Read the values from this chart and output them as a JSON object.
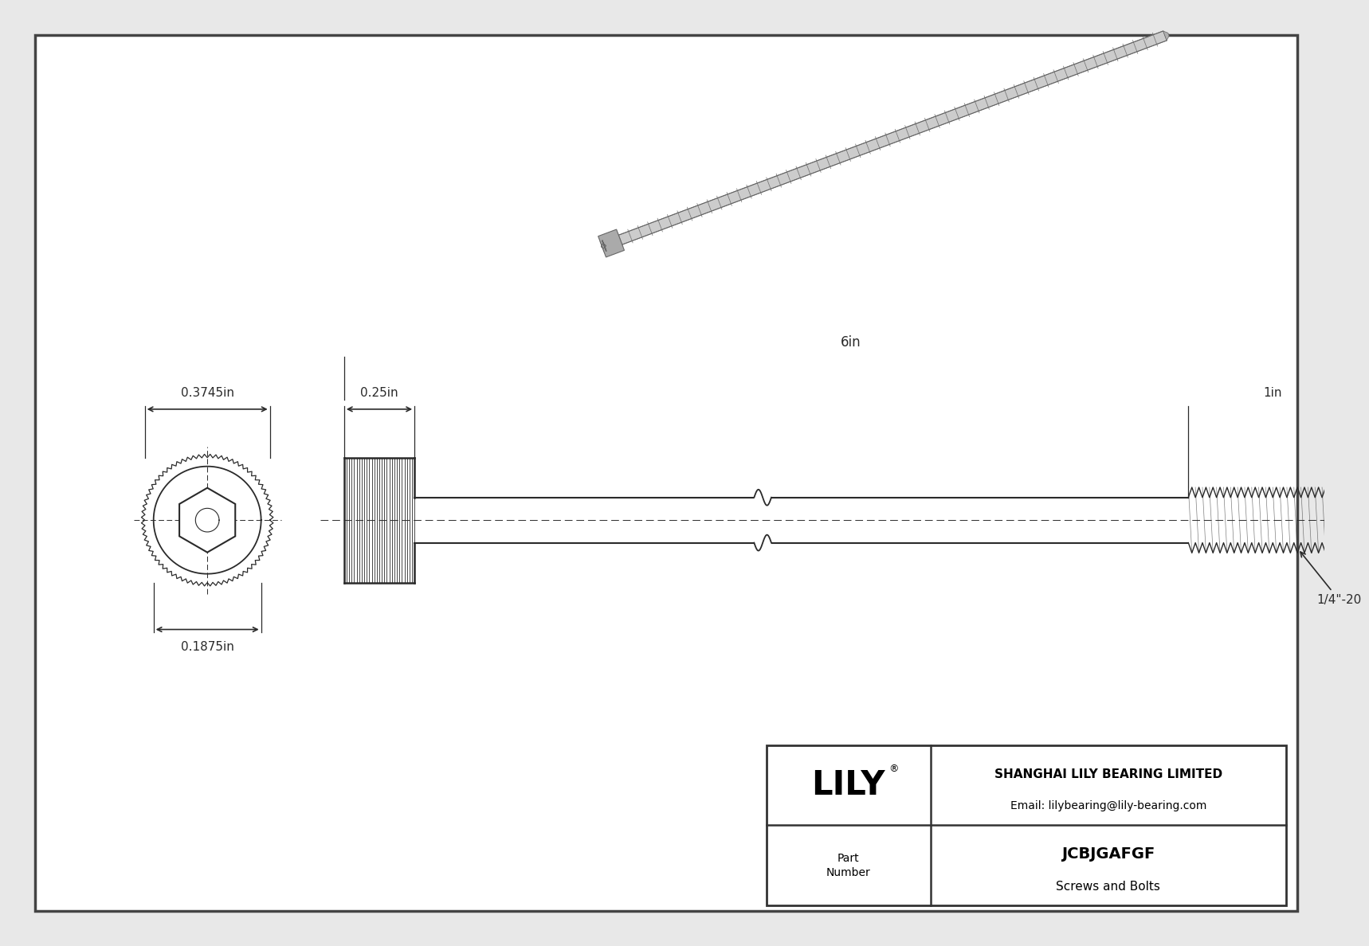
{
  "bg_color": "#e8e8e8",
  "drawing_bg": "#ffffff",
  "line_color": "#2a2a2a",
  "dim_color": "#2a2a2a",
  "title_company": "SHANGHAI LILY BEARING LIMITED",
  "title_email": "Email: lilybearing@lily-bearing.com",
  "part_number": "JCBJGAFGF",
  "part_type": "Screws and Bolts",
  "lily_text": "LILY",
  "dim_head_diameter": "0.3745in",
  "dim_shaft_diameter": "0.1875in",
  "dim_head_length": "0.25in",
  "dim_total_length": "6in",
  "dim_thread_length": "1in",
  "thread_spec": "1/4\"-20",
  "border_color": "#444444",
  "dim_line_color": "#2a2a2a"
}
